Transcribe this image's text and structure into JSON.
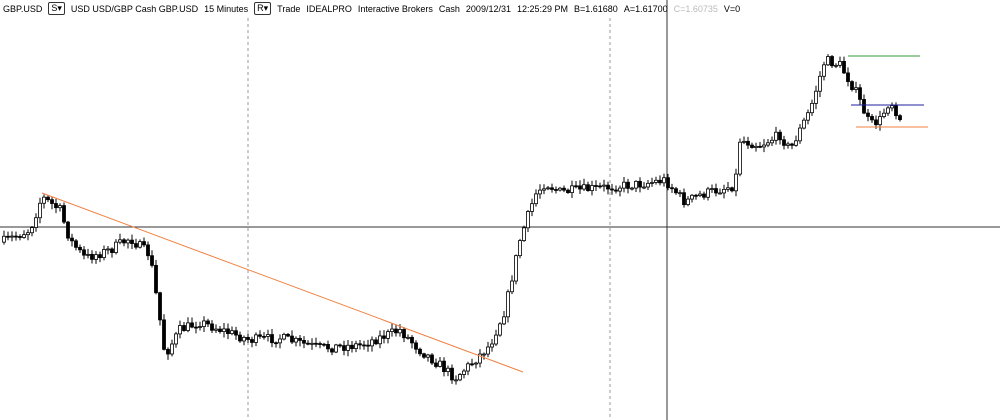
{
  "header": {
    "symbol": "GBP.USD",
    "s_button": "S▾",
    "description": "USD USD/GBP Cash GBP.USD",
    "interval": "15 Minutes",
    "r_button": "R▾",
    "mode": "Trade",
    "exchange": "IDEALPRO",
    "broker": "Interactive Brokers",
    "asset": "Cash",
    "date": "2009/12/31",
    "time": "12:25:29 PM",
    "bid": "B=1.61680",
    "ask": "A=1.61700",
    "close": "C=1.60735",
    "volume": "V=0"
  }
}
